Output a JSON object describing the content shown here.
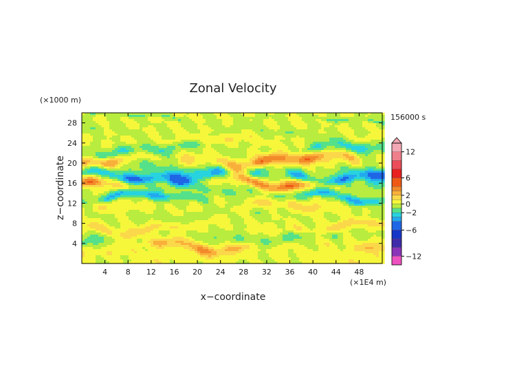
{
  "chart_data": {
    "type": "heatmap",
    "title": "Zonal Velocity",
    "xlabel": "x−coordinate",
    "ylabel": "z−coordinate",
    "x_unit": "(×1E4 m)",
    "y_unit": "(×1000 m)",
    "time_label": "156000 s",
    "xlim": [
      0,
      52
    ],
    "ylim": [
      0,
      30
    ],
    "x_ticks": [
      4,
      8,
      12,
      16,
      20,
      24,
      28,
      32,
      36,
      40,
      44,
      48
    ],
    "y_ticks": [
      4,
      8,
      12,
      16,
      20,
      24,
      28
    ],
    "x_tick_labels": [
      "4",
      "8",
      "12",
      "16",
      "20",
      "24",
      "28",
      "32",
      "36",
      "40",
      "44",
      "48"
    ],
    "y_tick_labels": [
      "4",
      "8",
      "12",
      "16",
      "20",
      "24",
      "28"
    ],
    "colorbar": {
      "min": -14,
      "max": 14,
      "labels": [
        "12",
        "6",
        "2",
        "0",
        "−2",
        "−6",
        "−12"
      ],
      "label_values": [
        12,
        6,
        2,
        0,
        -2,
        -6,
        -12
      ],
      "levels": [
        {
          "from": 12,
          "to": 14,
          "color": "#f4a7b4"
        },
        {
          "from": 10,
          "to": 12,
          "color": "#f07f8c"
        },
        {
          "from": 8,
          "to": 10,
          "color": "#ec4d5a"
        },
        {
          "from": 6,
          "to": 8,
          "color": "#e8201f"
        },
        {
          "from": 4,
          "to": 6,
          "color": "#ee5a16"
        },
        {
          "from": 3,
          "to": 4,
          "color": "#f28a2a"
        },
        {
          "from": 2,
          "to": 3,
          "color": "#f9b03a"
        },
        {
          "from": 1,
          "to": 2,
          "color": "#fbd84a"
        },
        {
          "from": 0,
          "to": 1,
          "color": "#f6f73a"
        },
        {
          "from": -1,
          "to": 0,
          "color": "#b8ec3e"
        },
        {
          "from": -2,
          "to": -1,
          "color": "#55e08a"
        },
        {
          "from": -3,
          "to": -2,
          "color": "#27d3df"
        },
        {
          "from": -4,
          "to": -3,
          "color": "#23a9ee"
        },
        {
          "from": -6,
          "to": -4,
          "color": "#1f66e6"
        },
        {
          "from": -8,
          "to": -6,
          "color": "#1636c8"
        },
        {
          "from": -10,
          "to": -8,
          "color": "#3f2ca8"
        },
        {
          "from": -12,
          "to": -10,
          "color": "#8a34b8"
        },
        {
          "from": -14,
          "to": -12,
          "color": "#ee52c0"
        }
      ]
    },
    "bands": [
      {
        "z": 29.0,
        "v": -1.0,
        "amp": 0.35
      },
      {
        "z": 26.0,
        "v": -0.6,
        "amp": 0.6
      },
      {
        "z": 24.2,
        "v": 0.8,
        "amp": 0.8
      },
      {
        "z": 22.6,
        "v": -2.0,
        "amp": 1.1
      },
      {
        "z": 20.5,
        "v": 3.6,
        "amp": 1.3
      },
      {
        "z": 18.6,
        "v": -2.2,
        "amp": 1.6
      },
      {
        "z": 17.4,
        "v": -3.2,
        "amp": 1.1
      },
      {
        "z": 16.2,
        "v": 3.0,
        "amp": 1.0
      },
      {
        "z": 14.6,
        "v": -1.0,
        "amp": 1.0
      },
      {
        "z": 13.0,
        "v": -2.6,
        "amp": 0.9
      },
      {
        "z": 11.2,
        "v": 1.2,
        "amp": 1.2
      },
      {
        "z": 9.6,
        "v": -0.8,
        "amp": 1.0
      },
      {
        "z": 7.2,
        "v": 1.4,
        "amp": 1.0
      },
      {
        "z": 5.2,
        "v": -1.4,
        "amp": 1.2
      },
      {
        "z": 3.6,
        "v": 2.2,
        "amp": 1.1
      },
      {
        "z": 1.4,
        "v": 0.6,
        "amp": 1.2
      }
    ]
  }
}
